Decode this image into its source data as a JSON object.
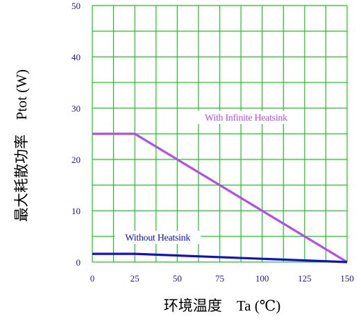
{
  "chart_data": {
    "type": "line",
    "xlabel": "环境温度    Ta (℃)",
    "ylabel": "最大耗散功率    Ptot (W)",
    "xlim": [
      0,
      150
    ],
    "ylim": [
      0,
      50
    ],
    "xticks": [
      0,
      25,
      50,
      75,
      100,
      125,
      150
    ],
    "yticks": [
      0,
      10,
      20,
      30,
      40,
      50
    ],
    "grid": true,
    "grid_color": "#22c022",
    "series": [
      {
        "name": "With Infinite Heatsink",
        "color": "#b14ee8",
        "x": [
          0,
          25,
          150
        ],
        "y": [
          25,
          25,
          0
        ]
      },
      {
        "name": "Without Heatsink",
        "color": "#1010cc",
        "x": [
          0,
          25,
          150
        ],
        "y": [
          1.6,
          1.6,
          0
        ]
      }
    ]
  }
}
